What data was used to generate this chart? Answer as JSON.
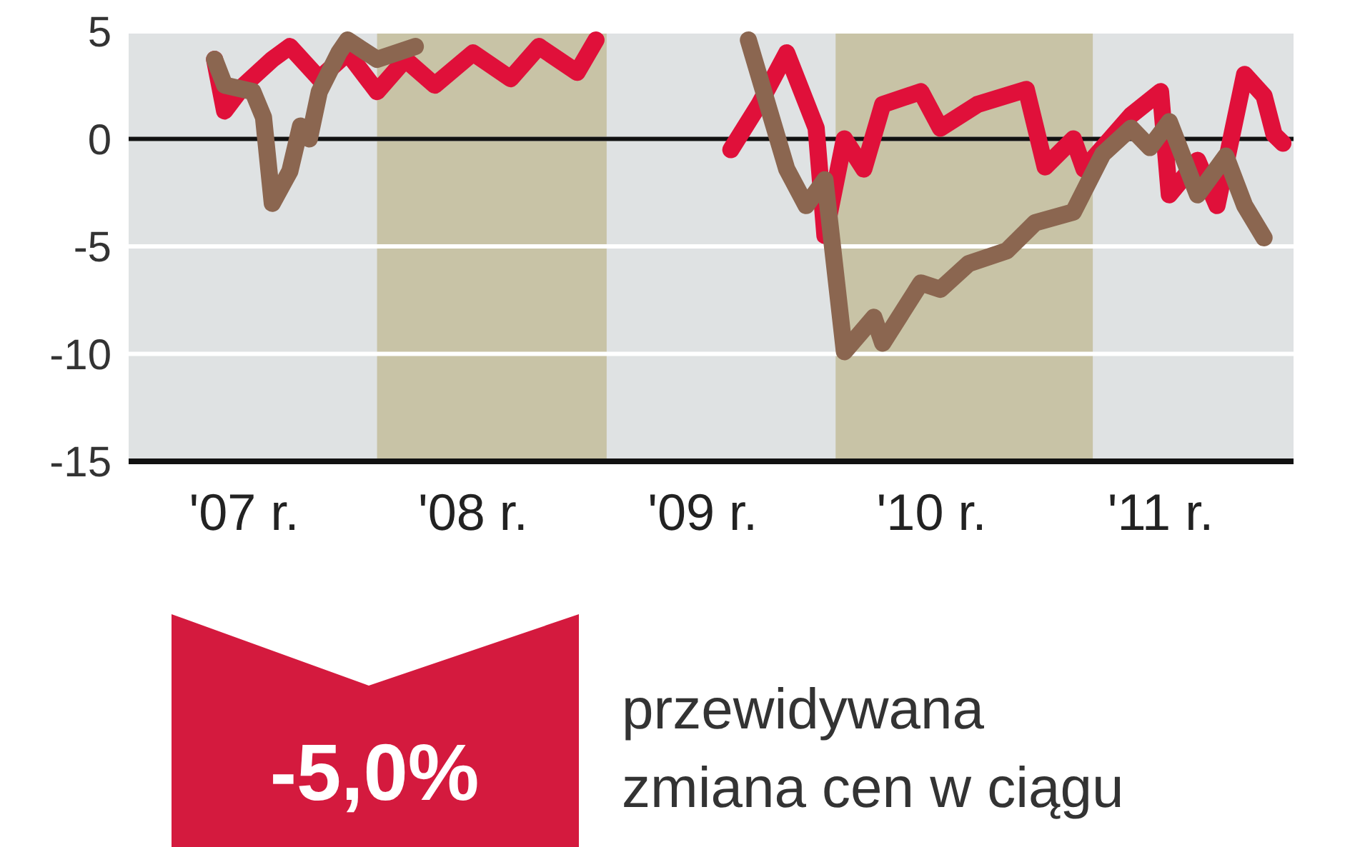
{
  "chart_data": {
    "type": "line",
    "xlim": [
      "2006-07-01",
      "2011-08-01"
    ],
    "ylim": [
      -15,
      5
    ],
    "xticks": [
      {
        "value": "2007-01-01",
        "label": "'07 r."
      },
      {
        "value": "2008-01-01",
        "label": "'08 r."
      },
      {
        "value": "2009-01-01",
        "label": "'09 r."
      },
      {
        "value": "2010-01-01",
        "label": "'10 r."
      },
      {
        "value": "2011-01-01",
        "label": "'11 r."
      }
    ],
    "yticks": [
      5,
      0,
      -5,
      -10,
      -15
    ],
    "grid": "y",
    "line_style": "solid",
    "bands": [
      {
        "axis": "x",
        "from": "2007-08-01",
        "to": "2008-08-01",
        "color": "#c8c3a6"
      },
      {
        "axis": "x",
        "from": "2009-08-01",
        "to": "2010-09-15",
        "color": "#c8c3a6"
      }
    ],
    "ref_lines": [
      {
        "axis": "y",
        "value": 0,
        "color": "#111111"
      }
    ],
    "series": [
      {
        "color": "#e0103a",
        "x": [
          "2006-11-15",
          "2006-12-01",
          "2007-01-01",
          "2007-02-15",
          "2007-03-15",
          "2007-05-01",
          "2007-06-15",
          "2007-08-01",
          "2007-09-15",
          "2007-11-01",
          "2008-01-01",
          "2008-03-01",
          "2008-04-15",
          "2008-06-15",
          "2008-07-15",
          "2008-10-15",
          "2009-02-15",
          "2009-04-01",
          "2009-05-15",
          "2009-07-01",
          "2009-07-15",
          "2009-08-15",
          "2009-09-15",
          "2009-10-15",
          "2009-12-15",
          "2010-01-15",
          "2010-03-15",
          "2010-06-01",
          "2010-07-01",
          "2010-08-15",
          "2010-09-01",
          "2010-11-15",
          "2011-01-01",
          "2011-01-15",
          "2011-03-01",
          "2011-04-01",
          "2011-05-15",
          "2011-06-15",
          "2011-07-01",
          "2011-07-15"
        ],
        "values": [
          3.7,
          1.3,
          2.5,
          3.7,
          4.3,
          2.8,
          4,
          2.2,
          3.7,
          2.5,
          4,
          2.8,
          4.3,
          3.1,
          4.6,
          null,
          -0.5,
          1.6,
          4,
          0.5,
          -4.5,
          0,
          -1.4,
          1.6,
          2.2,
          0.5,
          1.6,
          2.3,
          -1.3,
          0,
          -1.4,
          1.1,
          2.2,
          -2.6,
          -1,
          -3.1,
          3,
          2,
          0.2,
          -0.2
        ]
      },
      {
        "color": "#8b6650",
        "x": [
          "2006-11-15",
          "2006-12-01",
          "2007-01-15",
          "2007-02-01",
          "2007-02-15",
          "2007-03-15",
          "2007-04-01",
          "2007-04-15",
          "2007-05-01",
          "2007-06-01",
          "2007-06-15",
          "2007-08-01",
          "2007-10-01",
          "2008-10-15",
          "2009-03-15",
          "2009-05-15",
          "2009-06-15",
          "2009-07-15",
          "2009-08-15",
          "2009-10-01",
          "2009-10-15",
          "2009-12-15",
          "2010-01-15",
          "2010-03-01",
          "2010-05-01",
          "2010-06-15",
          "2010-08-15",
          "2010-10-01",
          "2010-11-15",
          "2010-12-15",
          "2011-01-15",
          "2011-03-01",
          "2011-04-15",
          "2011-05-15",
          "2011-06-15"
        ],
        "values": [
          3.7,
          2.5,
          2.2,
          1,
          -3,
          -1.5,
          0.6,
          0,
          2.2,
          4,
          4.6,
          3.7,
          4.3,
          null,
          4.6,
          -1.4,
          -3.1,
          -1.9,
          -9.9,
          -8.3,
          -9.5,
          -6.7,
          -7,
          -5.8,
          -5.2,
          -3.9,
          -3.4,
          -0.7,
          0.5,
          -0.4,
          0.8,
          -2.6,
          -0.8,
          -3.1,
          -4.6
        ]
      }
    ],
    "annotations": [
      "-5,0%",
      "przewidywana zmiana cen w ciągu"
    ]
  }
}
